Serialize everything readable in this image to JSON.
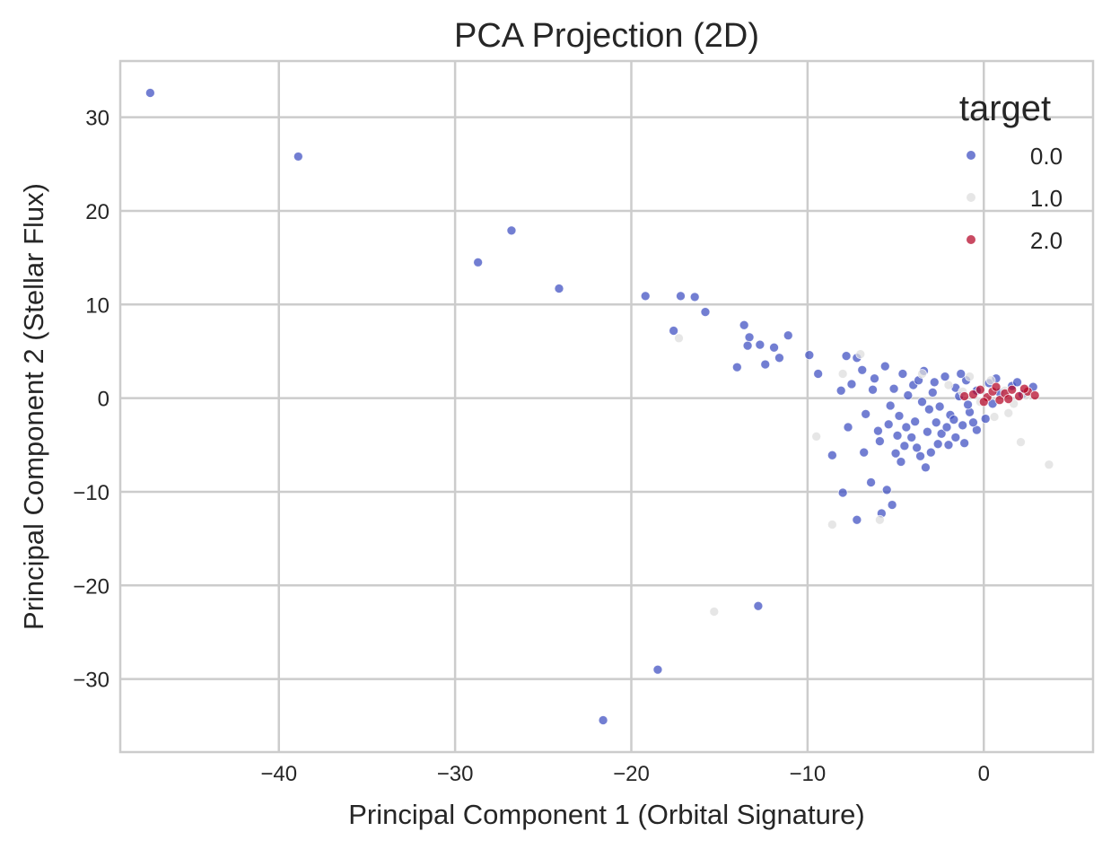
{
  "chart_data": {
    "type": "scatter",
    "title": "PCA Projection (2D)",
    "xlabel": "Principal Component 1 (Orbital Signature)",
    "ylabel": "Principal Component 2 (Stellar Flux)",
    "xlim": [
      -49.0,
      6.2
    ],
    "ylim": [
      -37.8,
      36.0
    ],
    "xticks": [
      -40,
      -30,
      -20,
      -10,
      0
    ],
    "xtick_labels": [
      "−40",
      "−30",
      "−20",
      "−10",
      "0"
    ],
    "yticks": [
      -30,
      -20,
      -10,
      0,
      10,
      20,
      30
    ],
    "ytick_labels": [
      "−30",
      "−20",
      "−10",
      "0",
      "10",
      "20",
      "30"
    ],
    "grid": true,
    "legend": {
      "title": "target",
      "placement": "top-right"
    },
    "series": [
      {
        "name": "0.0",
        "color": "#3b4cc0",
        "points": [
          [
            -47.3,
            32.6
          ],
          [
            -38.9,
            25.8
          ],
          [
            -28.7,
            14.5
          ],
          [
            -26.8,
            17.9
          ],
          [
            -24.1,
            11.7
          ],
          [
            -19.2,
            10.9
          ],
          [
            -17.2,
            10.9
          ],
          [
            -16.4,
            10.8
          ],
          [
            -15.8,
            9.2
          ],
          [
            -17.6,
            7.2
          ],
          [
            -13.6,
            7.8
          ],
          [
            -13.3,
            6.5
          ],
          [
            -13.4,
            5.6
          ],
          [
            -12.7,
            5.7
          ],
          [
            -11.1,
            6.7
          ],
          [
            -11.9,
            5.4
          ],
          [
            -11.6,
            4.3
          ],
          [
            -12.4,
            3.6
          ],
          [
            -14.0,
            3.3
          ],
          [
            -9.9,
            4.6
          ],
          [
            -9.4,
            2.6
          ],
          [
            -7.8,
            4.5
          ],
          [
            -7.2,
            4.3
          ],
          [
            -8.1,
            0.8
          ],
          [
            -7.7,
            -3.1
          ],
          [
            -8.6,
            -6.1
          ],
          [
            -8.0,
            -10.1
          ],
          [
            -6.8,
            -5.8
          ],
          [
            -6.7,
            -1.7
          ],
          [
            -6.0,
            -3.5
          ],
          [
            -6.4,
            -9.0
          ],
          [
            -5.5,
            -9.8
          ],
          [
            -5.2,
            -11.4
          ],
          [
            -5.8,
            -12.3
          ],
          [
            -7.2,
            -13.0
          ],
          [
            -3.3,
            -7.4
          ],
          [
            -12.8,
            -22.2
          ],
          [
            -18.5,
            -29.0
          ],
          [
            -21.6,
            -34.4
          ],
          [
            -7.5,
            1.5
          ],
          [
            -6.9,
            3.0
          ],
          [
            -6.2,
            2.1
          ],
          [
            -5.6,
            3.4
          ],
          [
            -5.1,
            1.0
          ],
          [
            -4.6,
            2.6
          ],
          [
            -4.0,
            1.4
          ],
          [
            -3.4,
            2.9
          ],
          [
            -2.8,
            1.7
          ],
          [
            -2.2,
            2.3
          ],
          [
            -1.6,
            1.1
          ],
          [
            -1.0,
            1.9
          ],
          [
            -0.4,
            0.8
          ],
          [
            0.3,
            1.6
          ],
          [
            0.9,
            0.6
          ],
          [
            1.6,
            1.3
          ],
          [
            2.2,
            0.4
          ],
          [
            2.8,
            1.2
          ],
          [
            -5.3,
            -0.8
          ],
          [
            -4.8,
            -1.9
          ],
          [
            -4.4,
            -3.1
          ],
          [
            -4.1,
            -4.2
          ],
          [
            -3.8,
            -5.3
          ],
          [
            -3.6,
            -6.2
          ],
          [
            -5.0,
            -5.9
          ],
          [
            -4.7,
            -6.8
          ],
          [
            -3.1,
            -1.2
          ],
          [
            -2.7,
            -2.6
          ],
          [
            -2.4,
            -3.8
          ],
          [
            -2.0,
            -5.0
          ],
          [
            -1.6,
            -4.2
          ],
          [
            -1.2,
            -2.9
          ],
          [
            -0.8,
            -1.5
          ],
          [
            -0.4,
            -3.4
          ],
          [
            0.1,
            -2.2
          ],
          [
            0.5,
            -0.6
          ],
          [
            -5.9,
            -4.6
          ],
          [
            -4.3,
            0.3
          ],
          [
            -3.5,
            -0.4
          ],
          [
            -2.9,
            0.6
          ],
          [
            -2.5,
            -0.9
          ],
          [
            -1.9,
            -1.8
          ],
          [
            -1.4,
            0.2
          ],
          [
            -0.9,
            -0.7
          ],
          [
            -3.9,
            -2.5
          ],
          [
            -3.2,
            -3.6
          ],
          [
            -2.6,
            -4.9
          ],
          [
            -2.1,
            -3.1
          ],
          [
            -1.7,
            -2.3
          ],
          [
            -4.5,
            -5.1
          ],
          [
            -3.0,
            -5.8
          ],
          [
            -1.1,
            -4.8
          ],
          [
            -0.6,
            -2.6
          ],
          [
            -5.4,
            -2.8
          ],
          [
            -4.9,
            -4.0
          ],
          [
            -6.3,
            0.9
          ],
          [
            -3.7,
            1.9
          ],
          [
            -1.3,
            2.6
          ],
          [
            0.7,
            2.1
          ],
          [
            1.9,
            1.7
          ]
        ]
      },
      {
        "name": "1.0",
        "color": "#dddddd",
        "points": [
          [
            -17.3,
            6.4
          ],
          [
            -15.3,
            -22.8
          ],
          [
            -9.5,
            -4.1
          ],
          [
            -8.6,
            -13.5
          ],
          [
            -5.9,
            -13.0
          ],
          [
            -8.0,
            2.6
          ],
          [
            -7.0,
            4.7
          ],
          [
            2.1,
            -4.7
          ],
          [
            3.7,
            -7.1
          ],
          [
            -3.5,
            2.6
          ],
          [
            -2.0,
            1.4
          ],
          [
            -0.8,
            2.3
          ],
          [
            0.4,
            1.9
          ],
          [
            1.2,
            0.8
          ],
          [
            1.7,
            -0.6
          ],
          [
            2.4,
            0.3
          ],
          [
            1.4,
            -1.6
          ],
          [
            0.6,
            -2.0
          ],
          [
            -0.2,
            -0.4
          ],
          [
            -1.2,
            0.7
          ]
        ]
      },
      {
        "name": "2.0",
        "color": "#b40426",
        "points": [
          [
            -0.6,
            0.4
          ],
          [
            -0.2,
            0.9
          ],
          [
            0.2,
            0.1
          ],
          [
            0.5,
            0.7
          ],
          [
            0.9,
            -0.2
          ],
          [
            1.2,
            0.5
          ],
          [
            1.6,
            0.9
          ],
          [
            2.0,
            0.2
          ],
          [
            2.5,
            0.7
          ],
          [
            2.9,
            0.3
          ],
          [
            0.0,
            -0.4
          ],
          [
            1.4,
            -0.1
          ],
          [
            -1.1,
            0.2
          ],
          [
            2.3,
            1.0
          ],
          [
            0.7,
            1.2
          ]
        ]
      }
    ]
  }
}
